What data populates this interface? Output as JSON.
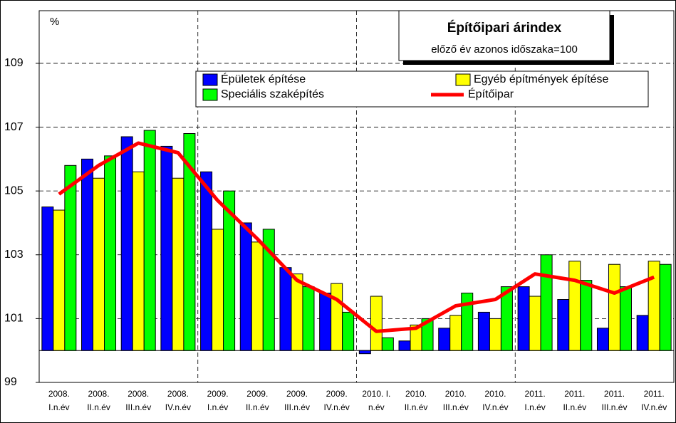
{
  "chart_data": {
    "type": "bar",
    "title": "Építőipari árindex",
    "subtitle": "előző év azonos időszaka=100",
    "y_label": "%",
    "categories": [
      "2008. I.n.év",
      "2008. II.n.év",
      "2008. III.n.év",
      "2008. IV.n.év",
      "2009. I.n.év",
      "2009. II.n.év",
      "2009. III.n.év",
      "2009. IV.n.év",
      "2010. I. n.év",
      "2010. II.n.év",
      "2010. III.n.év",
      "2010. IV.n.év",
      "2011. I.n.év",
      "2011. II.n.év",
      "2011. III.n.év",
      "2011. IV.n.év"
    ],
    "series": [
      {
        "name": "Épületek építése",
        "color": "#0000ff",
        "values": [
          104.5,
          106.0,
          106.7,
          106.4,
          105.6,
          104.0,
          102.6,
          101.8,
          99.9,
          100.3,
          100.7,
          101.2,
          102.0,
          101.6,
          100.7,
          101.1
        ]
      },
      {
        "name": "Egyéb építmények építése",
        "color": "#ffff00",
        "values": [
          104.4,
          105.4,
          105.6,
          105.4,
          103.8,
          103.4,
          102.4,
          102.1,
          101.7,
          100.8,
          101.1,
          101.0,
          101.7,
          102.8,
          102.7,
          102.8
        ]
      },
      {
        "name": "Speciális szaképítés",
        "color": "#00ff00",
        "values": [
          105.8,
          106.1,
          106.9,
          106.8,
          105.0,
          103.8,
          102.0,
          101.2,
          100.4,
          101.0,
          101.8,
          102.0,
          103.0,
          102.2,
          102.0,
          102.7
        ]
      },
      {
        "name": "Építőipar",
        "color": "#ff0000",
        "type": "line",
        "values": [
          104.9,
          105.8,
          106.5,
          106.2,
          104.7,
          103.5,
          102.2,
          101.6,
          100.6,
          100.7,
          101.4,
          101.6,
          102.4,
          102.2,
          101.8,
          102.3
        ]
      }
    ],
    "baseline": 100,
    "ylim": [
      99,
      110.65
    ],
    "yticks": [
      99,
      101,
      103,
      105,
      107,
      109
    ],
    "grid": true
  }
}
